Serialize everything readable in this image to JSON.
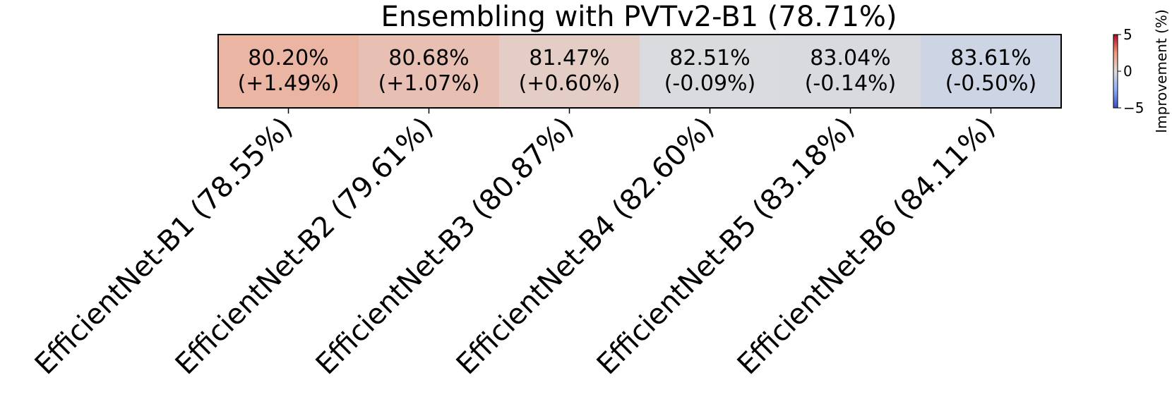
{
  "chart_data": {
    "type": "heatmap",
    "title": "Ensembling with PVTv2-B1 (78.71%)",
    "categories": [
      "EfficientNet-B1 (78.55%)",
      "EfficientNet-B2 (79.61%)",
      "EfficientNet-B3 (80.87%)",
      "EfficientNet-B4 (82.60%)",
      "EfficientNet-B5 (83.18%)",
      "EfficientNet-B6 (84.11%)"
    ],
    "values": [
      1.49,
      1.07,
      0.6,
      -0.09,
      -0.14,
      -0.5
    ],
    "cell_labels": [
      [
        "80.20%",
        "(+1.49%)"
      ],
      [
        "80.68%",
        "(+1.07%)"
      ],
      [
        "81.47%",
        "(+0.60%)"
      ],
      [
        "82.51%",
        "(-0.09%)"
      ],
      [
        "83.04%",
        "(-0.14%)"
      ],
      [
        "83.61%",
        "(-0.50%)"
      ]
    ],
    "colorbar": {
      "label": "Improvement (%)",
      "range": [
        -5,
        5
      ],
      "ticks": [
        "5",
        "0",
        "−5"
      ],
      "tick_values": [
        5,
        0,
        -5
      ],
      "colormap": "coolwarm"
    }
  }
}
